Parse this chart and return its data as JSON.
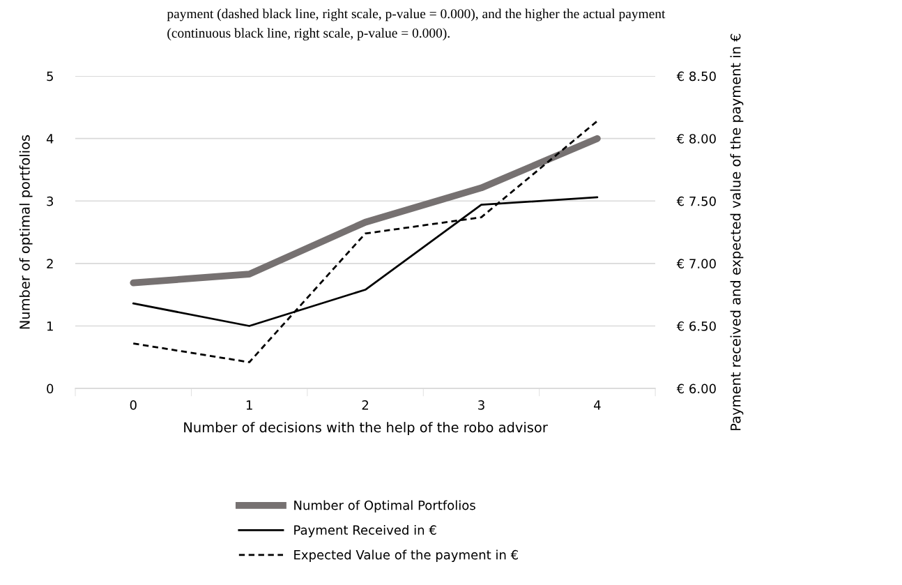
{
  "chart_data": {
    "type": "line",
    "annotations": [
      "payment (dashed black line, right scale, p-value = 0.000), and the higher the actual payment",
      "(continuous black line, right scale, p-value = 0.000)."
    ],
    "xlabel": "Number of decisions with the help of the robo advisor",
    "ylabel": "Number of optimal portfolios",
    "y2label": "Payment received and expected value of the payment in €",
    "categories": [
      "0",
      "1",
      "2",
      "3",
      "4"
    ],
    "series": [
      {
        "name": "Number of Optimal Portfolios",
        "color": "#767171",
        "values": [
          1.69,
          1.83,
          2.66,
          3.21,
          4.0
        ]
      },
      {
        "name": "Payment Received in €",
        "color": "#000000",
        "axis": "y2",
        "line_style": "solid",
        "values": [
          6.68,
          6.5,
          6.79,
          7.47,
          7.53
        ]
      },
      {
        "name": "Expected Value of the payment in €",
        "color": "#000000",
        "axis": "y2",
        "line_style": "dashed",
        "values": [
          6.36,
          6.21,
          7.24,
          7.37,
          8.14
        ]
      }
    ],
    "ylim": [
      0,
      5
    ],
    "yticks": [
      0,
      1,
      2,
      3,
      4,
      5
    ],
    "y2lim": [
      6.0,
      8.5
    ],
    "y2ticks": [
      {
        "value": 6.0,
        "label": "€ 6.00"
      },
      {
        "value": 6.5,
        "label": "€ 6.50"
      },
      {
        "value": 7.0,
        "label": "€ 7.00"
      },
      {
        "value": 7.5,
        "label": "€ 7.50"
      },
      {
        "value": 8.0,
        "label": "€ 8.00"
      },
      {
        "value": 8.5,
        "label": "€ 8.50"
      }
    ],
    "grid": "y",
    "legend": "bottom",
    "marker": "none"
  }
}
